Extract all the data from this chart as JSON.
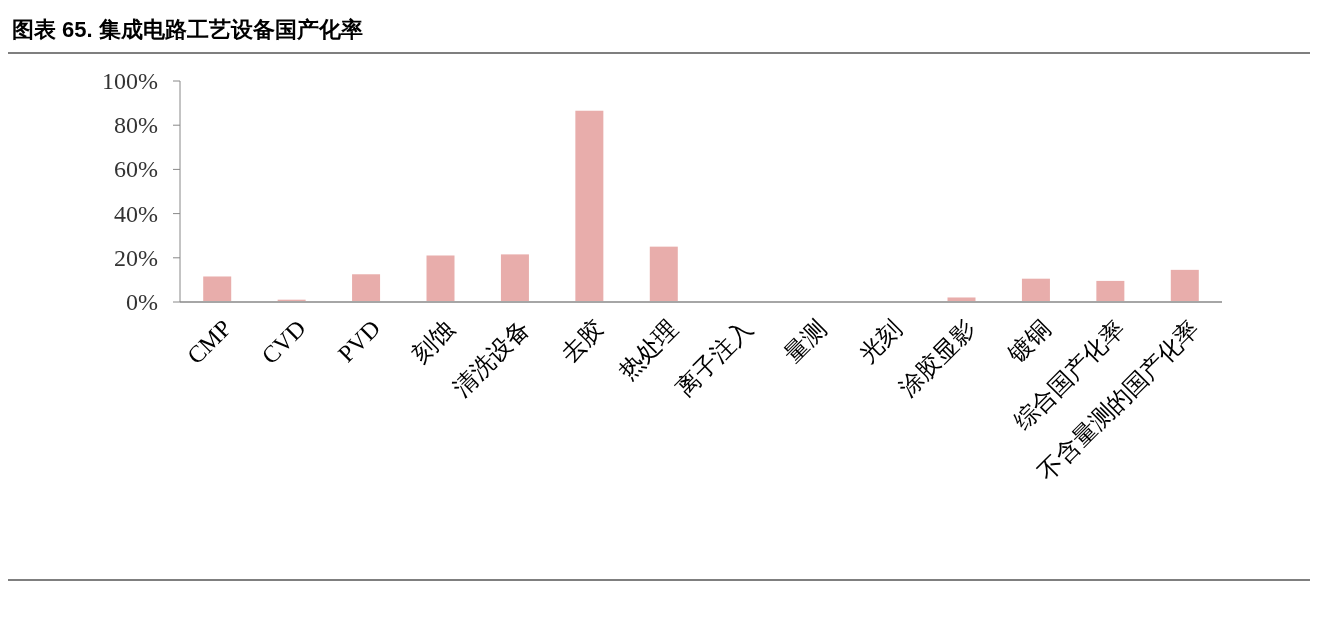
{
  "chart_data": {
    "type": "bar",
    "title": "图表 65. 集成电路工艺设备国产化率",
    "categories": [
      "CMP",
      "CVD",
      "PVD",
      "刻蚀",
      "清洗设备",
      "去胶",
      "热处理",
      "离子注入",
      "量测",
      "光刻",
      "涂胶显影",
      "镀铜",
      "综合国产化率",
      "不含量测的国产化率"
    ],
    "values": [
      12,
      1.5,
      13,
      21.5,
      22,
      87,
      25.5,
      null,
      null,
      0,
      2.5,
      11,
      10,
      15
    ],
    "color": "#e8adab",
    "ylim": [
      0,
      100
    ],
    "yticks": [
      {
        "value": 0,
        "label": "0%"
      },
      {
        "value": 20,
        "label": "20%"
      },
      {
        "value": 40,
        "label": "40%"
      },
      {
        "value": 60,
        "label": "60%"
      },
      {
        "value": 80,
        "label": "80%"
      },
      {
        "value": 100,
        "label": "100%"
      }
    ]
  }
}
